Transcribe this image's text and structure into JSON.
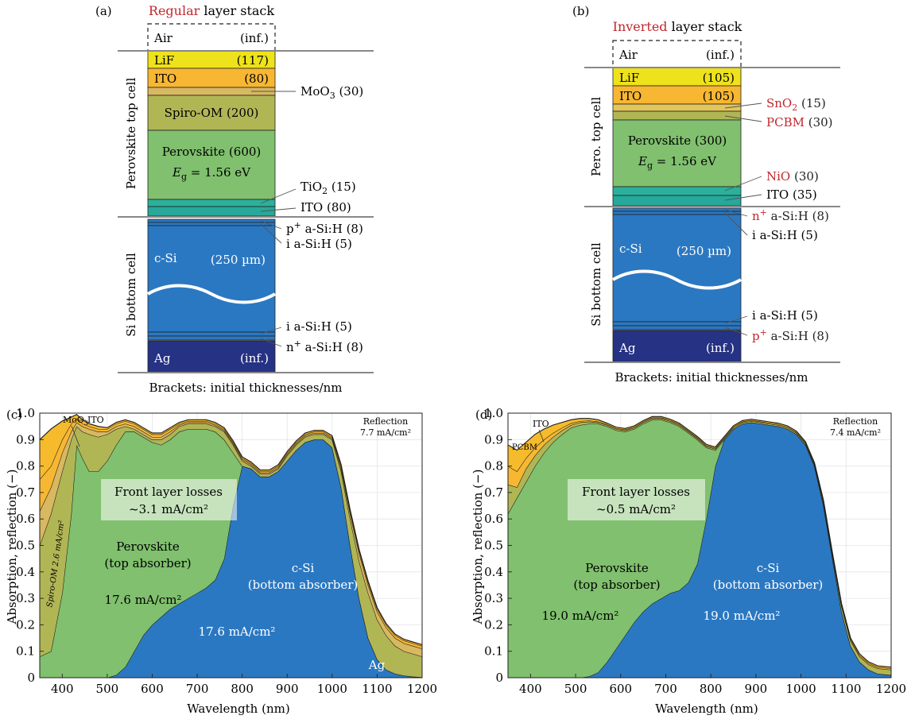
{
  "panel_a": {
    "tag": "(a)",
    "title_em": "Regular",
    "title_rest": " layer stack",
    "air": {
      "name": "Air",
      "thick": "(inf.)"
    },
    "layers": [
      {
        "name": "LiF",
        "thick": "(117)"
      },
      {
        "name": "ITO",
        "thick": "(80)"
      },
      {
        "name": "Spiro-OM (200)",
        "thick": ""
      },
      {
        "name": "Perovskite (600)",
        "thick": ""
      },
      {
        "name": "c-Si",
        "thick": "(250 µm)"
      },
      {
        "name": "Ag",
        "thick": "(inf.)"
      }
    ],
    "eg_symbol": "E",
    "eg_sub": "g",
    "eg_value": " = 1.56 eV",
    "callouts": [
      {
        "label": "MoO",
        "sub": "3",
        "rest": " (30)",
        "emph": false
      },
      {
        "label": "TiO",
        "sub": "2",
        "rest": " (15)",
        "emph": false
      },
      {
        "label": "ITO  (80)",
        "sub": "",
        "rest": "",
        "emph": false
      },
      {
        "label": "p",
        "sup": "+",
        "rest": " a-Si:H (8)",
        "emph": false
      },
      {
        "label": "i a-Si:H (5)",
        "sub": "",
        "rest": "",
        "emph": false
      },
      {
        "label": "i a-Si:H (5)",
        "sub": "",
        "rest": "",
        "emph": false
      },
      {
        "label": "n",
        "sup": "+",
        "rest": " a-Si:H (8)",
        "emph": false
      }
    ],
    "side_top": "Perovskite top cell",
    "side_bottom": "Si bottom cell",
    "footer": "Brackets: initial thicknesses/nm"
  },
  "panel_b": {
    "tag": "(b)",
    "title_em": "Inverted",
    "title_rest": " layer stack",
    "air": {
      "name": "Air",
      "thick": "(inf.)"
    },
    "layers": [
      {
        "name": "LiF",
        "thick": "(105)"
      },
      {
        "name": "ITO",
        "thick": "(105)"
      },
      {
        "name": "Perovskite (300)",
        "thick": ""
      },
      {
        "name": "c-Si",
        "thick": "(250 µm)"
      },
      {
        "name": "Ag",
        "thick": "(inf.)"
      }
    ],
    "eg_symbol": "E",
    "eg_sub": "g",
    "eg_value": " = 1.56 eV",
    "callouts": [
      {
        "label": "SnO",
        "sub": "2",
        "rest": " (15)",
        "emph": true
      },
      {
        "label": "PCBM",
        "sub": "",
        "rest": " (30)",
        "emph": true
      },
      {
        "label": "NiO",
        "sub": "",
        "rest": " (30)",
        "emph": true
      },
      {
        "label": "ITO (35)",
        "sub": "",
        "rest": "",
        "emph": false
      },
      {
        "label": "n",
        "sup": "+",
        "rest": " a-Si:H (8)",
        "emph": true
      },
      {
        "label": "i a-Si:H (5)",
        "sub": "",
        "rest": "",
        "emph": false
      },
      {
        "label": "i a-Si:H (5)",
        "sub": "",
        "rest": "",
        "emph": false
      },
      {
        "label": "p",
        "sup": "+",
        "rest": " a-Si:H (8)",
        "emph": true
      }
    ],
    "side_top": "Pero. top cell",
    "side_bottom": "Si bottom cell",
    "footer": "Brackets: initial thicknesses/nm"
  },
  "colors": {
    "accent_red": "#c0272d",
    "air_line": "#888888",
    "lif": "#eee21c",
    "ito": "#f7b733",
    "moo3": "#d8b860",
    "spiro": "#b1b655",
    "perovskite": "#80c06e",
    "etl_teal": "#2bb19b",
    "csi": "#2b78c2",
    "ag": "#263283",
    "reflection": "#f5bb2c",
    "pcbm": "#b1b655"
  },
  "chart_data": [
    {
      "id": "c",
      "tag": "(c)",
      "type": "area",
      "xlabel": "Wavelength (nm)",
      "ylabel": "Absorption, reflection (−)",
      "xlim": [
        350,
        1200
      ],
      "ylim": [
        0,
        1.0
      ],
      "xticks": [
        "400",
        "500",
        "600",
        "700",
        "800",
        "900",
        "1000",
        "1100",
        "1200"
      ],
      "yticks": [
        "0",
        "0.1",
        "0.2",
        "0.3",
        "0.4",
        "0.5",
        "0.6",
        "0.7",
        "0.8",
        "0.9",
        "1.0"
      ],
      "x": [
        350,
        375,
        400,
        420,
        432,
        445,
        460,
        480,
        500,
        520,
        540,
        560,
        580,
        600,
        620,
        640,
        660,
        680,
        700,
        720,
        740,
        760,
        780,
        800,
        820,
        840,
        860,
        880,
        900,
        920,
        940,
        960,
        980,
        1000,
        1020,
        1040,
        1060,
        1080,
        1100,
        1120,
        1140,
        1160,
        1180,
        1200
      ],
      "layers": [
        {
          "name": "c-Si",
          "values": [
            0,
            0,
            0,
            0,
            0,
            0,
            0,
            0,
            0,
            0.01,
            0.04,
            0.1,
            0.16,
            0.2,
            0.23,
            0.26,
            0.28,
            0.3,
            0.32,
            0.34,
            0.37,
            0.45,
            0.65,
            0.8,
            0.79,
            0.76,
            0.76,
            0.78,
            0.82,
            0.86,
            0.89,
            0.9,
            0.9,
            0.87,
            0.72,
            0.5,
            0.3,
            0.15,
            0.07,
            0.03,
            0.015,
            0.008,
            0.004,
            0.002
          ]
        },
        {
          "name": "Perovskite",
          "values": [
            0.08,
            0.1,
            0.32,
            0.62,
            0.88,
            0.83,
            0.78,
            0.78,
            0.82,
            0.88,
            0.93,
            0.93,
            0.91,
            0.89,
            0.88,
            0.9,
            0.93,
            0.94,
            0.94,
            0.94,
            0.93,
            0.9,
            0.85,
            0.8,
            0.79,
            0.76,
            0.76,
            0.78,
            0.82,
            0.86,
            0.89,
            0.9,
            0.9,
            0.87,
            0.72,
            0.5,
            0.3,
            0.15,
            0.07,
            0.03,
            0.015,
            0.008,
            0.004,
            0.002
          ]
        },
        {
          "name": "Spiro-OM",
          "values": [
            0.5,
            0.62,
            0.78,
            0.9,
            0.95,
            0.93,
            0.92,
            0.91,
            0.92,
            0.94,
            0.95,
            0.94,
            0.92,
            0.9,
            0.9,
            0.92,
            0.95,
            0.96,
            0.96,
            0.96,
            0.95,
            0.93,
            0.88,
            0.82,
            0.8,
            0.77,
            0.77,
            0.79,
            0.84,
            0.88,
            0.91,
            0.92,
            0.92,
            0.9,
            0.78,
            0.6,
            0.44,
            0.32,
            0.22,
            0.16,
            0.12,
            0.1,
            0.09,
            0.08
          ]
        },
        {
          "name": "MoO3",
          "values": [
            0.63,
            0.72,
            0.85,
            0.93,
            0.965,
            0.95,
            0.94,
            0.93,
            0.93,
            0.95,
            0.96,
            0.95,
            0.93,
            0.91,
            0.91,
            0.93,
            0.955,
            0.965,
            0.965,
            0.965,
            0.955,
            0.935,
            0.885,
            0.825,
            0.805,
            0.775,
            0.775,
            0.795,
            0.845,
            0.885,
            0.915,
            0.925,
            0.925,
            0.905,
            0.79,
            0.62,
            0.47,
            0.35,
            0.25,
            0.19,
            0.15,
            0.13,
            0.12,
            0.11
          ]
        },
        {
          "name": "ITO",
          "values": [
            0.75,
            0.8,
            0.9,
            0.96,
            0.98,
            0.96,
            0.95,
            0.94,
            0.94,
            0.96,
            0.97,
            0.96,
            0.94,
            0.92,
            0.92,
            0.94,
            0.96,
            0.97,
            0.97,
            0.97,
            0.96,
            0.94,
            0.89,
            0.83,
            0.81,
            0.78,
            0.78,
            0.8,
            0.85,
            0.89,
            0.92,
            0.93,
            0.93,
            0.91,
            0.8,
            0.63,
            0.48,
            0.36,
            0.26,
            0.2,
            0.16,
            0.14,
            0.13,
            0.12
          ]
        },
        {
          "name": "Reflection",
          "values": [
            0.9,
            0.94,
            0.97,
            0.985,
            0.995,
            0.975,
            0.96,
            0.95,
            0.945,
            0.965,
            0.975,
            0.965,
            0.945,
            0.925,
            0.925,
            0.945,
            0.965,
            0.975,
            0.975,
            0.975,
            0.965,
            0.945,
            0.895,
            0.835,
            0.815,
            0.785,
            0.785,
            0.805,
            0.855,
            0.895,
            0.925,
            0.935,
            0.935,
            0.915,
            0.805,
            0.635,
            0.485,
            0.365,
            0.265,
            0.205,
            0.165,
            0.145,
            0.135,
            0.125
          ]
        }
      ],
      "annotations": {
        "reflection_label": "Reflection",
        "reflection_value": "7.7 mA/cm²",
        "front_losses_1": "Front layer losses",
        "front_losses_2": "~3.1 mA/cm²",
        "perovskite_1": "Perovskite",
        "perovskite_2": "(top absorber)",
        "perovskite_current": "17.6 mA/cm²",
        "csi_1": "c-Si",
        "csi_2": "(bottom absorber)",
        "csi_current": "17.6 mA/cm²",
        "spiro_rotated": "Spiro-OM 2.6 mA/cm²",
        "moo3": "MoO",
        "moo3_sub": "3",
        "ito": "ITO",
        "ag": "Ag"
      }
    },
    {
      "id": "d",
      "tag": "(d)",
      "type": "area",
      "xlabel": "Wavelength (nm)",
      "ylabel": "Absorption, reflection (−)",
      "xlim": [
        350,
        1200
      ],
      "ylim": [
        0,
        1.0
      ],
      "xticks": [
        "400",
        "500",
        "600",
        "700",
        "800",
        "900",
        "1000",
        "1100",
        "1200"
      ],
      "yticks": [
        "0",
        "0.1",
        "0.2",
        "0.3",
        "0.4",
        "0.5",
        "0.6",
        "0.7",
        "0.8",
        "0.9",
        "1.0"
      ],
      "x": [
        350,
        370,
        390,
        410,
        430,
        450,
        470,
        490,
        510,
        530,
        550,
        570,
        590,
        610,
        630,
        650,
        670,
        690,
        710,
        730,
        750,
        770,
        790,
        810,
        830,
        850,
        870,
        890,
        910,
        930,
        950,
        970,
        990,
        1010,
        1030,
        1050,
        1070,
        1090,
        1110,
        1130,
        1150,
        1170,
        1200
      ],
      "layers": [
        {
          "name": "c-Si",
          "values": [
            0,
            0,
            0,
            0,
            0,
            0,
            0,
            0,
            0,
            0.005,
            0.02,
            0.06,
            0.11,
            0.16,
            0.21,
            0.25,
            0.28,
            0.3,
            0.32,
            0.33,
            0.36,
            0.43,
            0.6,
            0.8,
            0.9,
            0.94,
            0.96,
            0.965,
            0.96,
            0.955,
            0.95,
            0.94,
            0.92,
            0.88,
            0.8,
            0.65,
            0.45,
            0.25,
            0.12,
            0.06,
            0.03,
            0.015,
            0.01
          ]
        },
        {
          "name": "Perovskite",
          "values": [
            0.62,
            0.68,
            0.74,
            0.8,
            0.85,
            0.89,
            0.92,
            0.945,
            0.955,
            0.96,
            0.96,
            0.95,
            0.935,
            0.93,
            0.94,
            0.96,
            0.975,
            0.975,
            0.965,
            0.95,
            0.925,
            0.9,
            0.87,
            0.86,
            0.9,
            0.94,
            0.96,
            0.965,
            0.96,
            0.955,
            0.95,
            0.94,
            0.92,
            0.88,
            0.8,
            0.65,
            0.45,
            0.25,
            0.12,
            0.06,
            0.03,
            0.015,
            0.01
          ]
        },
        {
          "name": "PCBM",
          "values": [
            0.73,
            0.72,
            0.79,
            0.84,
            0.88,
            0.91,
            0.935,
            0.955,
            0.965,
            0.968,
            0.965,
            0.955,
            0.94,
            0.935,
            0.945,
            0.965,
            0.98,
            0.98,
            0.97,
            0.955,
            0.93,
            0.905,
            0.875,
            0.865,
            0.905,
            0.945,
            0.965,
            0.97,
            0.965,
            0.96,
            0.955,
            0.945,
            0.925,
            0.885,
            0.805,
            0.66,
            0.46,
            0.27,
            0.14,
            0.08,
            0.05,
            0.035,
            0.03
          ]
        },
        {
          "name": "ITO",
          "values": [
            0.8,
            0.78,
            0.83,
            0.87,
            0.9,
            0.925,
            0.945,
            0.962,
            0.97,
            0.972,
            0.968,
            0.958,
            0.943,
            0.938,
            0.948,
            0.968,
            0.983,
            0.983,
            0.973,
            0.958,
            0.933,
            0.908,
            0.878,
            0.868,
            0.908,
            0.948,
            0.968,
            0.973,
            0.968,
            0.963,
            0.958,
            0.948,
            0.928,
            0.888,
            0.808,
            0.665,
            0.465,
            0.275,
            0.145,
            0.085,
            0.055,
            0.04,
            0.035
          ]
        },
        {
          "name": "Reflection",
          "values": [
            0.88,
            0.86,
            0.89,
            0.92,
            0.94,
            0.955,
            0.965,
            0.975,
            0.98,
            0.98,
            0.975,
            0.962,
            0.947,
            0.942,
            0.952,
            0.972,
            0.987,
            0.987,
            0.977,
            0.962,
            0.937,
            0.912,
            0.882,
            0.872,
            0.912,
            0.952,
            0.972,
            0.977,
            0.972,
            0.967,
            0.962,
            0.952,
            0.932,
            0.892,
            0.812,
            0.67,
            0.47,
            0.28,
            0.15,
            0.09,
            0.06,
            0.045,
            0.04
          ]
        }
      ],
      "annotations": {
        "reflection_label": "Reflection",
        "reflection_value": "7.4 mA/cm²",
        "front_losses_1": "Front layer losses",
        "front_losses_2": "~0.5 mA/cm²",
        "perovskite_1": "Perovskite",
        "perovskite_2": "(top absorber)",
        "perovskite_current": "19.0 mA/cm²",
        "csi_1": "c-Si",
        "csi_2": "(bottom absorber)",
        "csi_current": "19.0 mA/cm²",
        "ito": "ITO",
        "pcbm": "PCBM"
      }
    }
  ]
}
